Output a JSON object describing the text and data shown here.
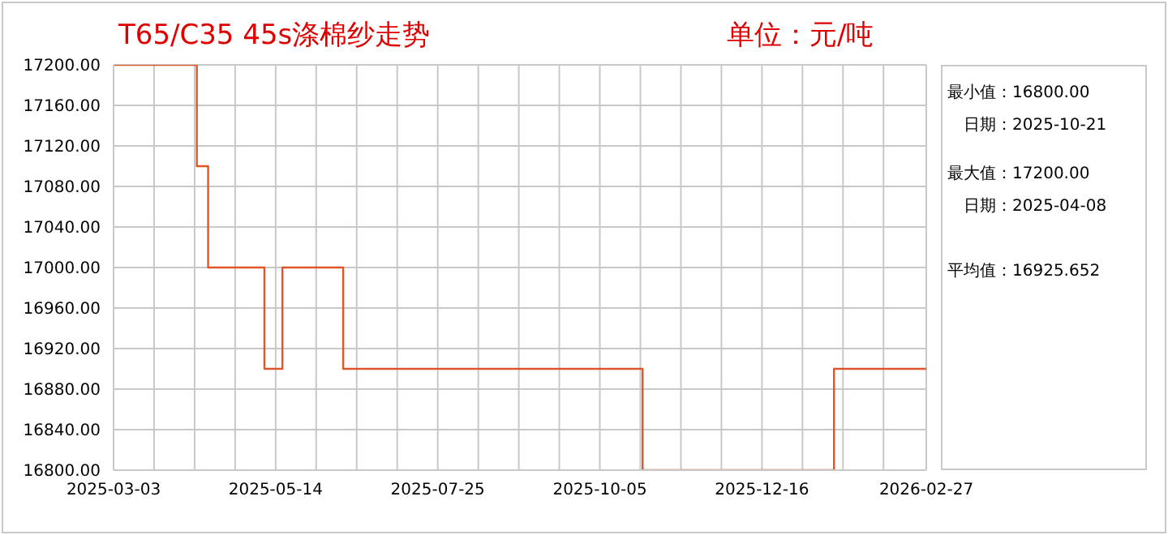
{
  "chart_data": {
    "type": "step",
    "title": "T65/C35 45s涤棉纱走势",
    "subtitle": "单位：元/吨",
    "x": [
      "2025-03-03",
      "2025-04-09",
      "2025-04-11",
      "2025-04-14",
      "2025-05-09",
      "2025-05-17",
      "2025-06-13",
      "2025-10-24",
      "2026-01-17",
      "2026-02-27"
    ],
    "series": [
      {
        "color": "#e0562a",
        "values": [
          17200,
          17100,
          17100,
          17000,
          16900,
          17000,
          16900,
          16800,
          16900,
          16900
        ]
      }
    ],
    "xlim": [
      "2025-03-03",
      "2026-02-27"
    ],
    "xticks": [
      "2025-03-03",
      {
        "value": "2025-03-21",
        "label": null
      },
      {
        "value": "2025-04-08",
        "label": null
      },
      {
        "value": "2025-04-26",
        "label": null
      },
      "2025-05-14",
      {
        "value": "2025-06-01",
        "label": null
      },
      {
        "value": "2025-06-19",
        "label": null
      },
      {
        "value": "2025-07-07",
        "label": null
      },
      "2025-07-25",
      {
        "value": "2025-08-12",
        "label": null
      },
      {
        "value": "2025-08-30",
        "label": null
      },
      {
        "value": "2025-09-17",
        "label": null
      },
      "2025-10-05",
      {
        "value": "2025-10-23",
        "label": null
      },
      {
        "value": "2025-11-10",
        "label": null
      },
      {
        "value": "2025-11-28",
        "label": null
      },
      "2025-12-16",
      {
        "value": "2026-01-03",
        "label": null
      },
      {
        "value": "2026-01-21",
        "label": null
      },
      {
        "value": "2026-02-08",
        "label": null
      },
      "2026-02-27"
    ],
    "ylim": [
      16800,
      17200
    ],
    "yticks": [
      {
        "value": 16800,
        "label": "16800.00"
      },
      {
        "value": 16840,
        "label": "16840.00"
      },
      {
        "value": 16880,
        "label": "16880.00"
      },
      {
        "value": 16920,
        "label": "16920.00"
      },
      {
        "value": 16960,
        "label": "16960.00"
      },
      {
        "value": 17000,
        "label": "17000.00"
      },
      {
        "value": 17040,
        "label": "17040.00"
      },
      {
        "value": 17080,
        "label": "17080.00"
      },
      {
        "value": 17120,
        "label": "17120.00"
      },
      {
        "value": 17160,
        "label": "17160.00"
      },
      {
        "value": 17200,
        "label": "17200.00"
      }
    ],
    "grid": true,
    "marker": "none",
    "line_style": "solid",
    "annotations": [
      "最小值：16800.00",
      "日期：2025-10-21",
      "最大值：17200.00",
      "日期：2025-04-08",
      "平均值：16925.652"
    ]
  }
}
